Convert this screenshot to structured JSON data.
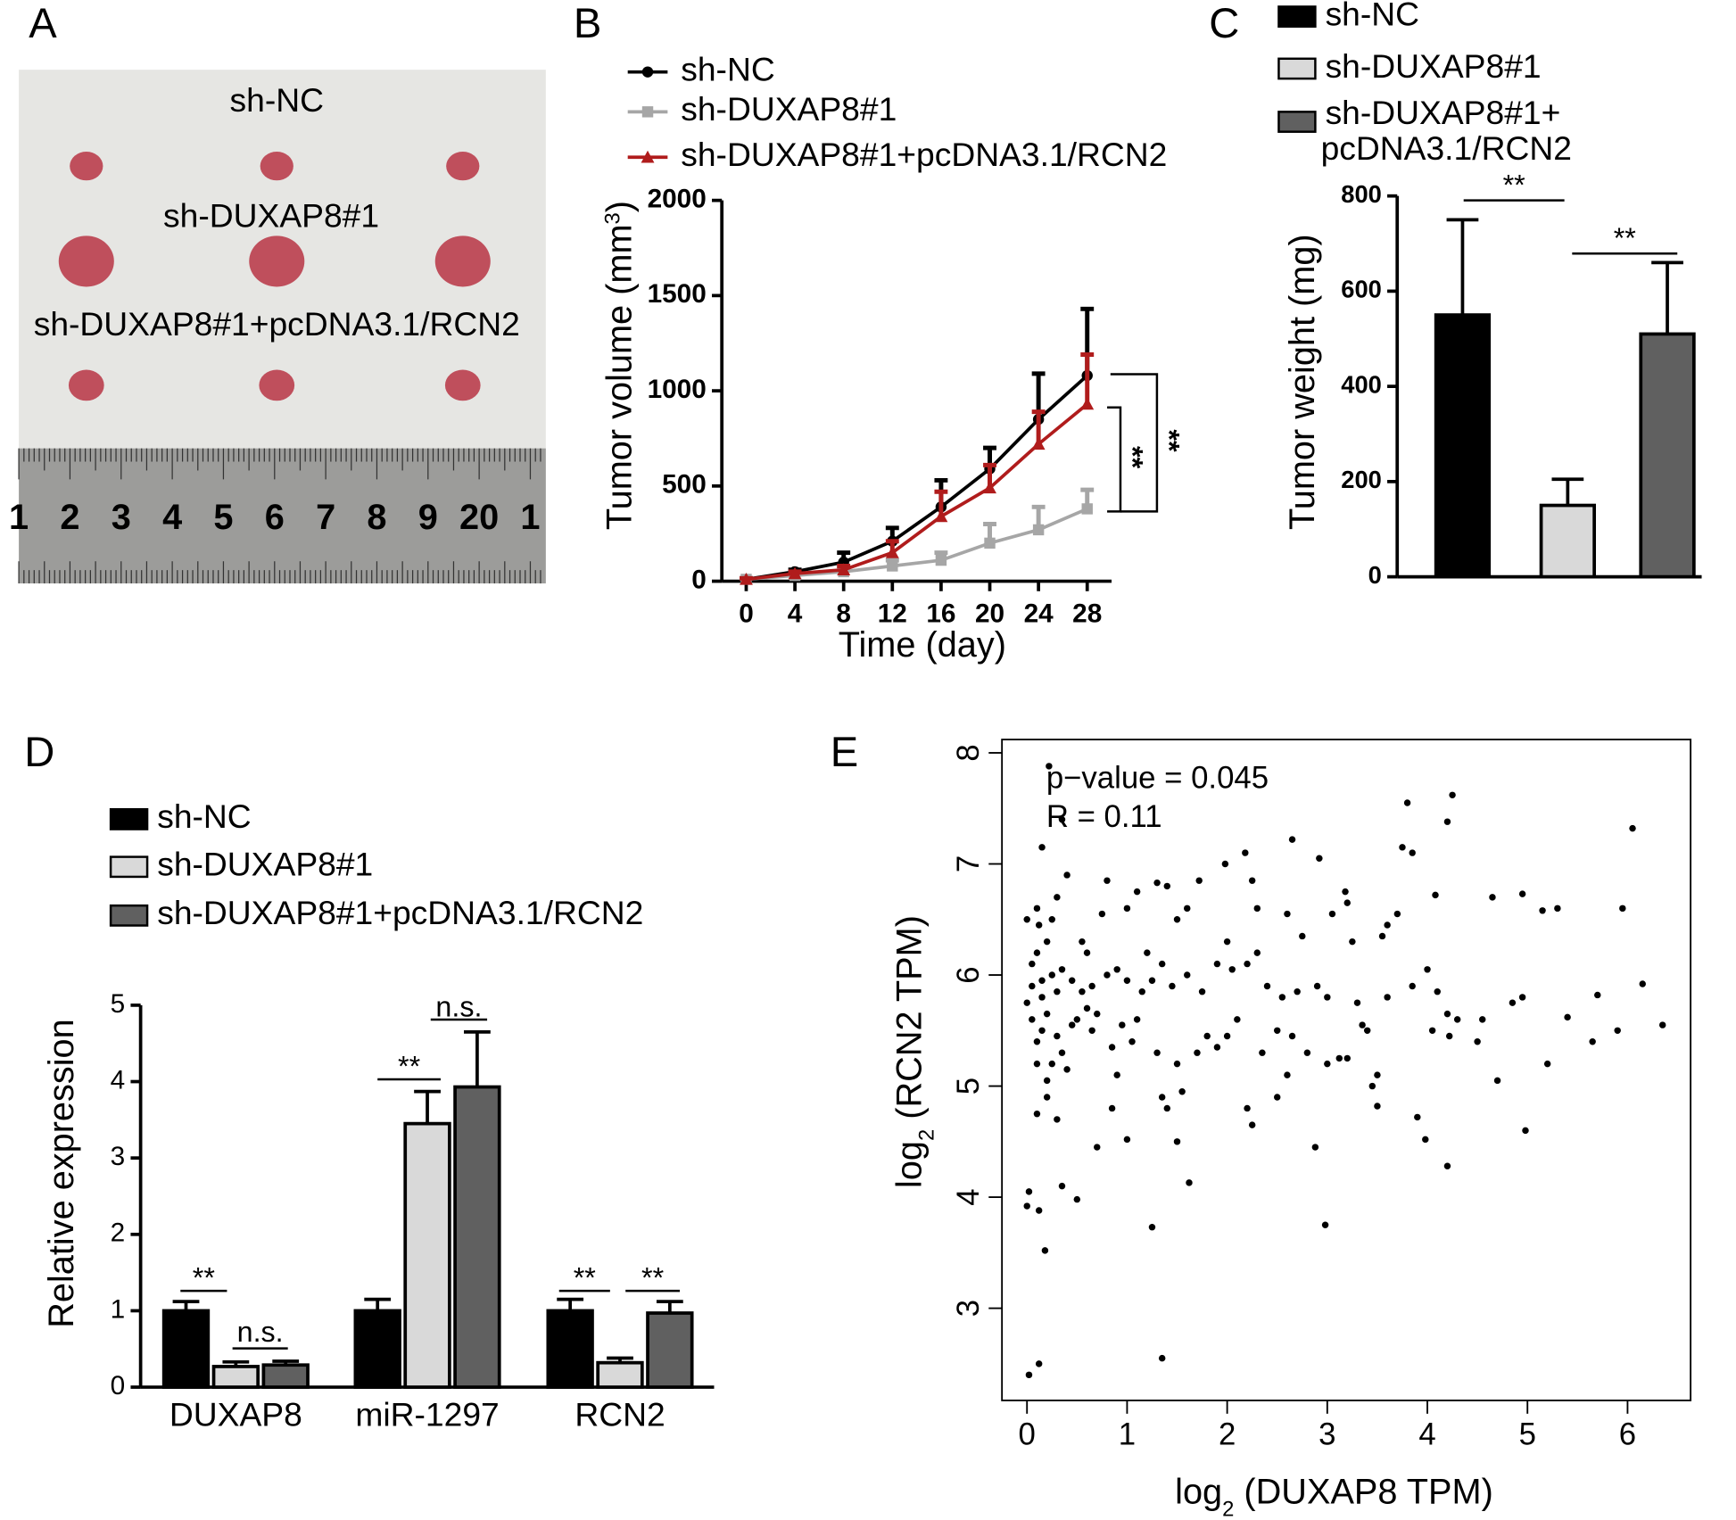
{
  "panel_labels": [
    "A",
    "B",
    "C",
    "D",
    "E"
  ],
  "photo": {
    "labels": [
      "sh-NC",
      "sh-DUXAP8#1",
      "sh-DUXAP8#1+pcDNA3.1/RCN2"
    ],
    "ruler": [
      "1",
      "2",
      "3",
      "4",
      "5",
      "6",
      "7",
      "8",
      "9",
      "20",
      "1"
    ]
  },
  "chart_data": [
    {
      "type": "line",
      "x_label": "Time (day)",
      "y_label": [
        "Tumor volume (mm",
        "3",
        ")"
      ],
      "x": [
        0,
        4,
        8,
        12,
        16,
        20,
        24,
        28
      ],
      "xlim": [
        -2,
        30
      ],
      "xticks": [
        0,
        4,
        8,
        12,
        16,
        20,
        24,
        28
      ],
      "ylim": [
        0,
        2000
      ],
      "yticks": [
        0,
        500,
        1000,
        1500,
        2000
      ],
      "series": [
        {
          "name": "sh-NC",
          "color": "#000000",
          "marker": "circle",
          "values": [
            10,
            50,
            100,
            210,
            390,
            590,
            850,
            1080
          ],
          "errors": [
            5,
            10,
            50,
            70,
            140,
            110,
            240,
            350
          ]
        },
        {
          "name": "sh-DUXAP8#1",
          "color": "#a6a6a6",
          "marker": "square",
          "values": [
            10,
            30,
            50,
            80,
            110,
            200,
            270,
            380
          ],
          "errors": [
            5,
            10,
            20,
            30,
            40,
            100,
            120,
            100
          ]
        },
        {
          "name": "sh-DUXAP8#1+pcDNA3.1/RCN2",
          "color": "#b01c1c",
          "marker": "triangle",
          "values": [
            10,
            40,
            60,
            150,
            340,
            490,
            720,
            930
          ],
          "errors": [
            5,
            10,
            20,
            60,
            130,
            120,
            170,
            260
          ]
        }
      ],
      "annotations": [
        "**",
        "**"
      ]
    },
    {
      "type": "bar",
      "y_label": "Tumor weight (mg)",
      "ylim": [
        0,
        800
      ],
      "yticks": [
        0,
        200,
        400,
        600,
        800
      ],
      "series": [
        {
          "name": "sh-NC",
          "color": "#000000",
          "values": [
            550
          ],
          "errors": [
            200
          ]
        },
        {
          "name": "sh-DUXAP8#1",
          "color": "#d9d9d9",
          "values": [
            150
          ],
          "errors": [
            55
          ]
        },
        {
          "name": "sh-DUXAP8#1+pcDNA3.1/RCN2",
          "color": "#606060",
          "values": [
            510
          ],
          "errors": [
            150
          ]
        }
      ],
      "annotations": [
        "**",
        "**"
      ]
    },
    {
      "type": "grouped_bar",
      "y_label": "Relative expression",
      "categories": [
        "DUXAP8",
        "miR-1297",
        "RCN2"
      ],
      "ylim": [
        0,
        5
      ],
      "yticks": [
        0,
        1,
        2,
        3,
        4,
        5
      ],
      "series": [
        {
          "name": "sh-NC",
          "color": "#000000",
          "values": [
            1,
            1,
            1
          ],
          "errors": [
            0.12,
            0.15,
            0.15
          ]
        },
        {
          "name": "sh-DUXAP8#1",
          "color": "#d9d9d9",
          "values": [
            0.27,
            3.45,
            0.32
          ],
          "errors": [
            0.06,
            0.42,
            0.06
          ]
        },
        {
          "name": "sh-DUXAP8#1+pcDNA3.1/RCN2",
          "color": "#606060",
          "values": [
            0.29,
            3.93,
            0.97
          ],
          "errors": [
            0.05,
            0.72,
            0.15
          ]
        }
      ],
      "annotations": [
        "**",
        "n.s.",
        "**",
        "n.s.",
        "**",
        "**"
      ]
    },
    {
      "type": "scatter",
      "x_label": [
        "log",
        "2",
        " (DUXAP8 TPM)"
      ],
      "y_label": [
        "log",
        "2",
        " (RCN2 TPM)"
      ],
      "xlim": [
        -0.25,
        6.63
      ],
      "xticks": [
        0,
        1,
        2,
        3,
        4,
        5,
        6
      ],
      "ylim": [
        2.17,
        8.12
      ],
      "yticks": [
        3,
        4,
        5,
        6,
        7,
        8
      ],
      "color": "#000000",
      "annotations": [
        "p−value = 0.045",
        "R = 0.11"
      ],
      "x": [
        0.02,
        0.12,
        1.35,
        0.02,
        0,
        0.12,
        0.18,
        0.35,
        0.5,
        1.25,
        2.98,
        1.62,
        4.2,
        4.98,
        3.98,
        2.25,
        2.2,
        1,
        0.7,
        1.5,
        2.88,
        3.9,
        3.5,
        0.1,
        0.3,
        0.2,
        0.85,
        1.4,
        2.5,
        3.2,
        3.45,
        3.5,
        4.7,
        5.2,
        5.65,
        6.35,
        5.4,
        5.9,
        6.15,
        5.7,
        5.95,
        6.05,
        4.25,
        4.2,
        3.8,
        3.75,
        3.85,
        2.65,
        2.92,
        2.18,
        1.98,
        1.72,
        1.3,
        1.4,
        1.1,
        0.22,
        0.35,
        0.15,
        0,
        0.1,
        0.3,
        0.4,
        0.8,
        0.75,
        1,
        1.5,
        1.6,
        2,
        2.25,
        2.3,
        2.6,
        3.05,
        3.18,
        3.2,
        3.6,
        3.55,
        3.7,
        4.08,
        4.65,
        4.95,
        5.15,
        5.3,
        2.3,
        2.75,
        3.25,
        1.9,
        2.05,
        2.2,
        1.2,
        1.35,
        0.55,
        0.6,
        0.1,
        0.2,
        0.05,
        0.15,
        0.25,
        0.35,
        0.45,
        0.55,
        0.65,
        0.8,
        0.9,
        1,
        1.15,
        1.25,
        1.45,
        1.6,
        1.75,
        2.4,
        2.55,
        2.7,
        2.9,
        3,
        3.3,
        3.6,
        3.85,
        4,
        4.1,
        4.2,
        4.3,
        4.05,
        4.22,
        4.85,
        4.95,
        4.55,
        4.5,
        3.35,
        3.4,
        2.65,
        2.5,
        2.35,
        2,
        1.9,
        1.7,
        1.5,
        1.3,
        1.05,
        0.85,
        0.65,
        0.45,
        0.3,
        0.15,
        0.05,
        0.1,
        0.25,
        0.4,
        0.2,
        0.35,
        0.5,
        0.6,
        0.7,
        0.95,
        1.1,
        1.8,
        2.1,
        2.6,
        2.8,
        3,
        0.9,
        1.55,
        1.35,
        0.1,
        0.05,
        0,
        0.15,
        0.2,
        0.3,
        0.12,
        0.25,
        3.12
      ],
      "y": [
        2.4,
        2.5,
        2.55,
        4.05,
        3.92,
        3.88,
        3.52,
        4.1,
        3.98,
        3.73,
        3.75,
        4.13,
        4.28,
        4.6,
        4.52,
        4.65,
        4.8,
        4.52,
        4.45,
        4.5,
        4.45,
        4.72,
        4.82,
        4.75,
        4.7,
        4.9,
        4.8,
        4.8,
        4.9,
        5.25,
        5,
        5.1,
        5.05,
        5.2,
        5.4,
        5.55,
        5.62,
        5.5,
        5.92,
        5.82,
        6.6,
        7.32,
        7.62,
        7.38,
        7.55,
        7.15,
        7.1,
        7.22,
        7.05,
        7.1,
        7,
        6.85,
        6.83,
        6.8,
        6.75,
        7.88,
        7.4,
        7.15,
        6.5,
        6.6,
        6.7,
        6.9,
        6.85,
        6.55,
        6.6,
        6.5,
        6.6,
        6.3,
        6.85,
        6.6,
        6.55,
        6.55,
        6.75,
        6.65,
        6.45,
        6.35,
        6.55,
        6.72,
        6.7,
        6.73,
        6.58,
        6.6,
        6.2,
        6.35,
        6.3,
        6.1,
        6.05,
        6.1,
        6.2,
        6.1,
        6.3,
        6.2,
        6.2,
        6.3,
        5.9,
        5.95,
        6,
        6.05,
        5.95,
        5.85,
        5.9,
        6,
        6.05,
        5.95,
        5.85,
        5.95,
        5.9,
        6,
        5.85,
        5.9,
        5.8,
        5.85,
        5.9,
        5.8,
        5.75,
        5.8,
        5.9,
        6.05,
        5.85,
        5.65,
        5.6,
        5.5,
        5.45,
        5.75,
        5.8,
        5.6,
        5.4,
        5.55,
        5.5,
        5.45,
        5.5,
        5.3,
        5.45,
        5.35,
        5.3,
        5.2,
        5.3,
        5.4,
        5.35,
        5.5,
        5.55,
        5.45,
        5.5,
        5.6,
        5.4,
        5.2,
        5.15,
        5.05,
        5.3,
        5.6,
        5.7,
        5.65,
        5.55,
        5.6,
        5.45,
        5.6,
        5.1,
        5.3,
        5.2,
        5.1,
        4.95,
        4.9,
        5.2,
        6.1,
        5.75,
        5.8,
        5.65,
        5.85,
        6.45,
        6.5,
        5.25
      ]
    }
  ]
}
